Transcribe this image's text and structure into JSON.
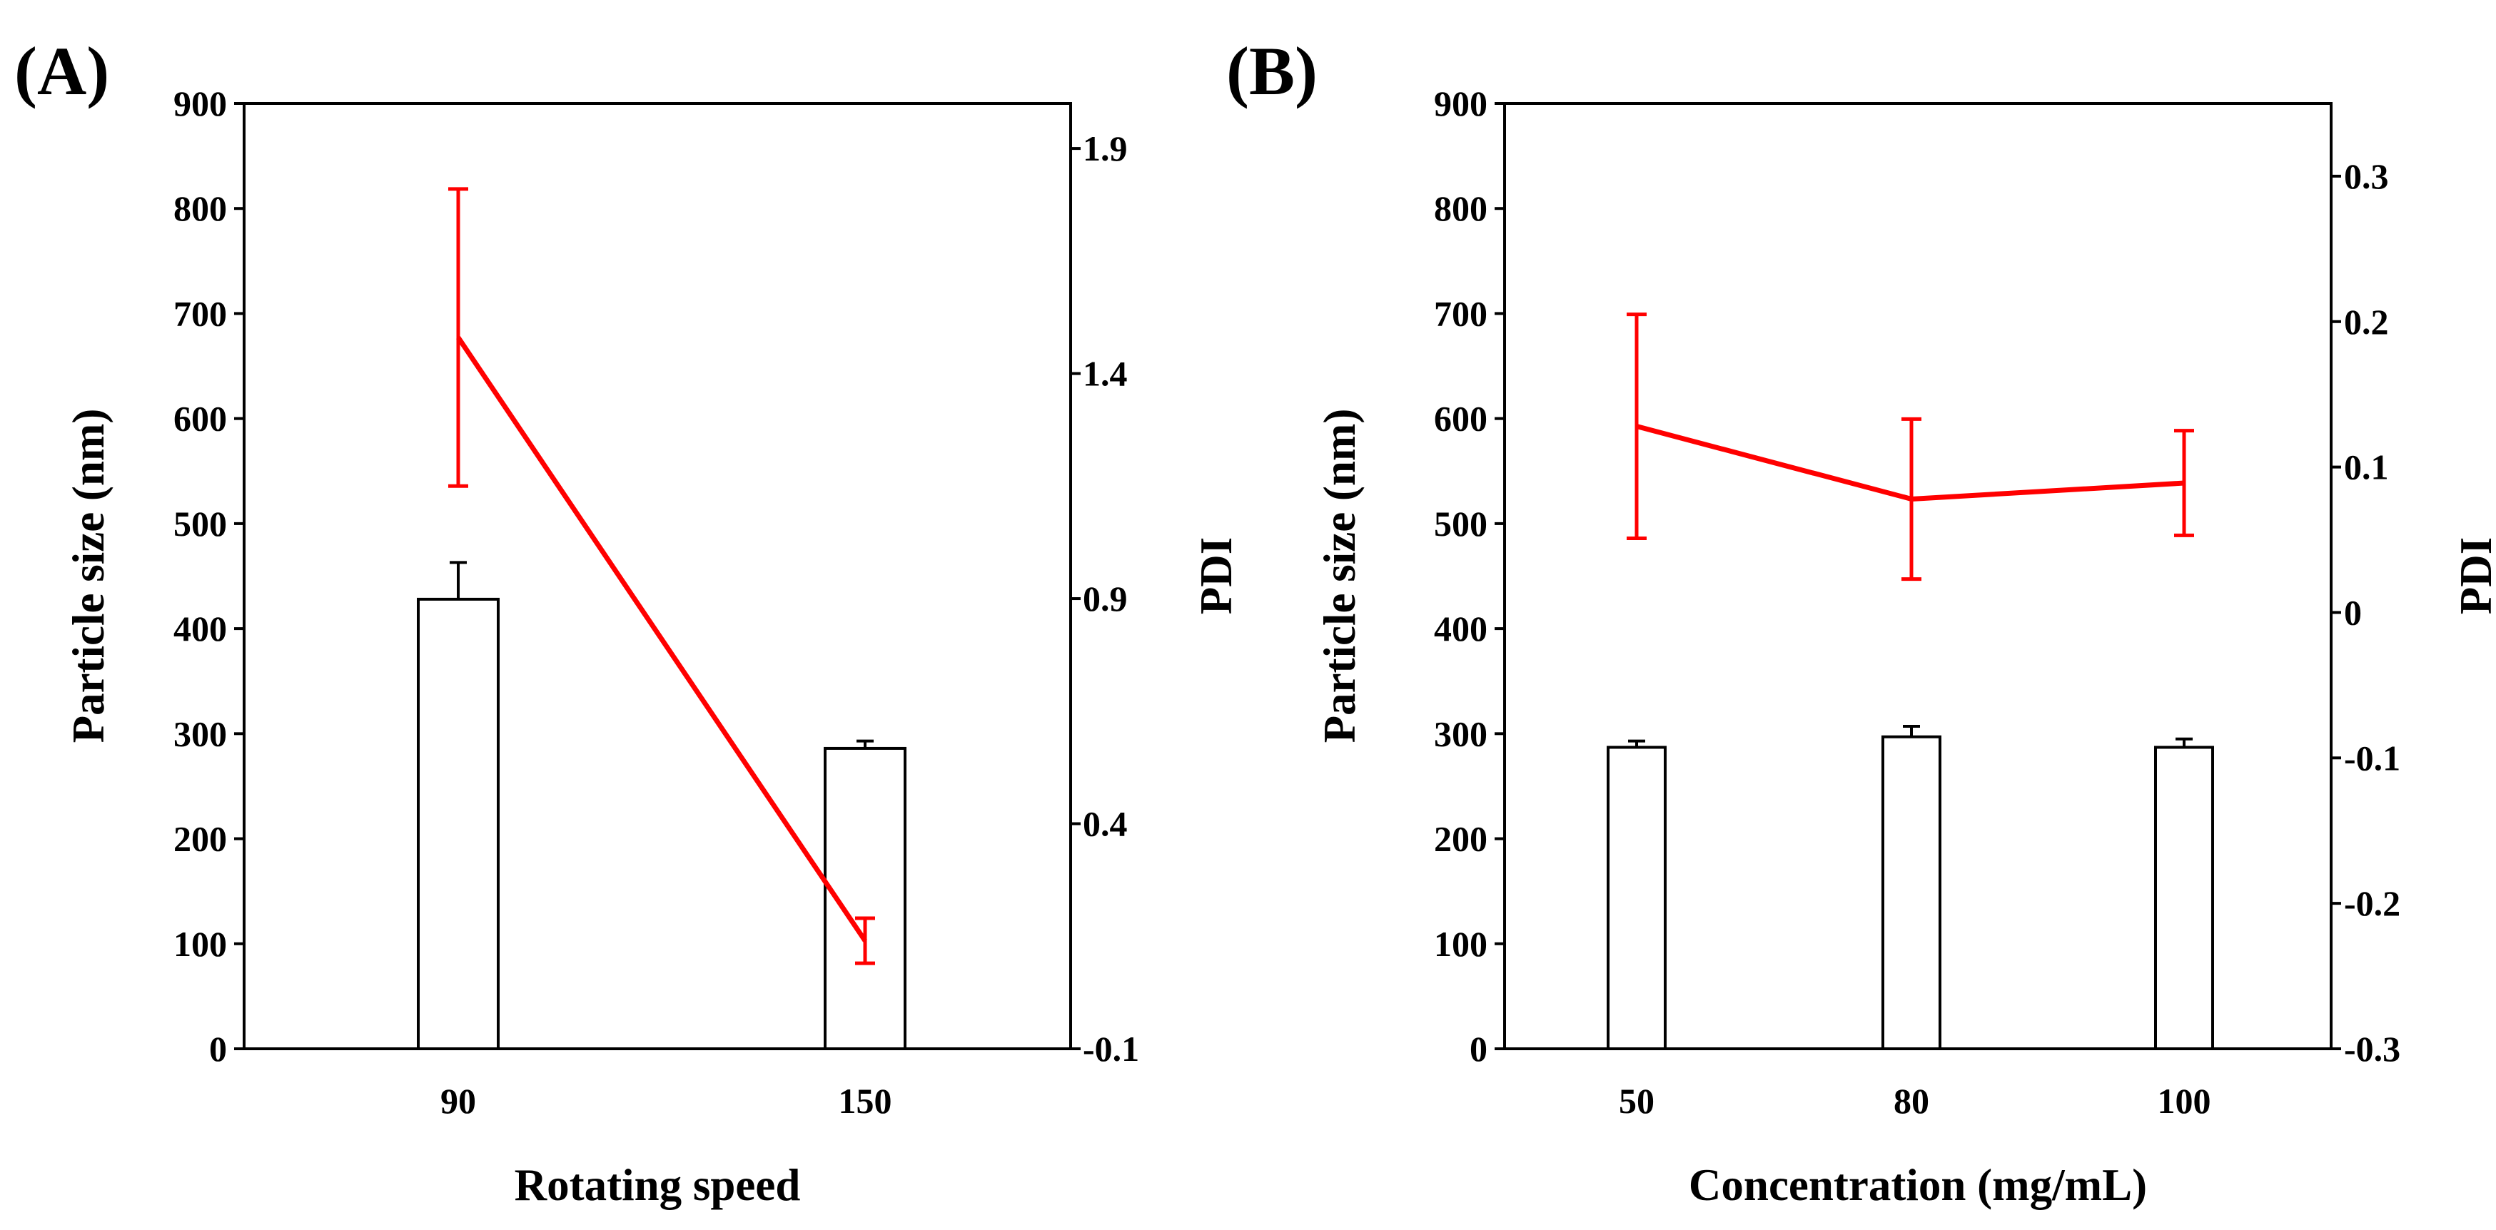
{
  "figure": {
    "panels": [
      {
        "label": "(A)",
        "xlabel": "Rotating speed",
        "ylabel_left": "Particle size (nm)",
        "ylabel_right": "PDI"
      },
      {
        "label": "(B)",
        "xlabel": "Concentration (mg/mL)",
        "ylabel_left": "Particle size (nm)",
        "ylabel_right": "PDI"
      }
    ]
  },
  "colors": {
    "bar_fill": "#ffffff",
    "bar_stroke": "#000000",
    "line": "#ff0000",
    "axis": "#000000"
  },
  "chart_data": [
    {
      "type": "bar",
      "panel": "A",
      "title": "",
      "categories": [
        "90",
        "150"
      ],
      "xlabel": "Rotating speed",
      "ylabel": "Particle size (nm)",
      "ylim": [
        0,
        900
      ],
      "yticks": [
        0,
        100,
        200,
        300,
        400,
        500,
        600,
        700,
        800,
        900
      ],
      "bars": [
        {
          "category": "90",
          "value": 428,
          "error": 35
        },
        {
          "category": "150",
          "value": 286,
          "error": 7
        }
      ],
      "line_series": {
        "name": "PDI",
        "axis": "right",
        "ylabel": "PDI",
        "ylim": [
          -0.1,
          2.0
        ],
        "yticks": [
          "-0.1",
          "0.4",
          "0.9",
          "1.4",
          "1.9"
        ],
        "points": [
          {
            "category": "90",
            "value": 1.48,
            "error": 0.33
          },
          {
            "category": "150",
            "value": 0.14,
            "error": 0.05
          }
        ]
      }
    },
    {
      "type": "bar",
      "panel": "B",
      "title": "",
      "categories": [
        "50",
        "80",
        "100"
      ],
      "xlabel": "Concentration (mg/mL)",
      "ylabel": "Particle size (nm)",
      "ylim": [
        0,
        900
      ],
      "yticks": [
        0,
        100,
        200,
        300,
        400,
        500,
        600,
        700,
        800,
        900
      ],
      "bars": [
        {
          "category": "50",
          "value": 287,
          "error": 6
        },
        {
          "category": "80",
          "value": 297,
          "error": 10
        },
        {
          "category": "100",
          "value": 287,
          "error": 8
        }
      ],
      "line_series": {
        "name": "PDI",
        "axis": "right",
        "ylabel": "PDI",
        "ylim": [
          -0.3,
          0.35
        ],
        "yticks": [
          "-0.3",
          "-0.2",
          "-0.1",
          "0",
          "0.1",
          "0.2",
          "0.3"
        ],
        "points": [
          {
            "category": "50",
            "value": 0.128,
            "error": 0.077
          },
          {
            "category": "80",
            "value": 0.078,
            "error": 0.055
          },
          {
            "category": "100",
            "value": 0.089,
            "error": 0.036
          }
        ]
      }
    }
  ]
}
